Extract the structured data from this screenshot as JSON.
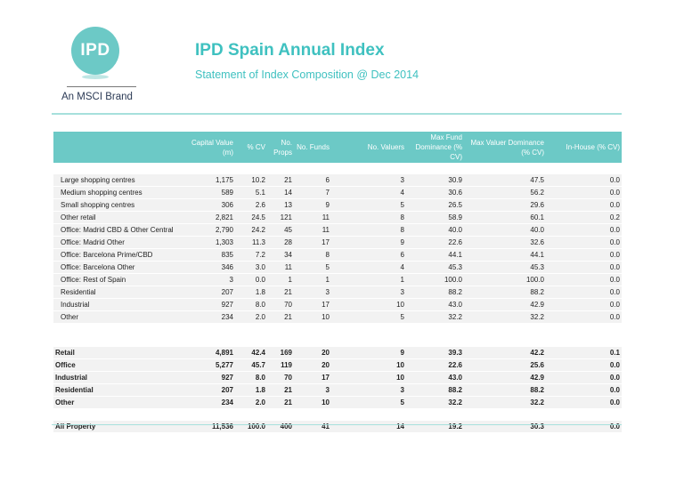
{
  "logo": {
    "text": "IPD",
    "brand": "An MSCI Brand",
    "color": "#6cc9c6"
  },
  "header": {
    "title": "IPD Spain Annual Index",
    "subtitle": "Statement of Index Composition  @ Dec 2014",
    "accent": "#3fc1c0"
  },
  "columns": [
    "",
    "Capital Value (m)",
    "% CV",
    "No. Props",
    "No. Funds",
    "No. Valuers",
    "Max Fund Dominance (% CV)",
    "Max Valuer Dominance (% CV)",
    "In-House (% CV)"
  ],
  "detail_rows": [
    [
      "Large shopping centres",
      "1,175",
      "10.2",
      "21",
      "6",
      "3",
      "30.9",
      "47.5",
      "0.0"
    ],
    [
      "Medium shopping centres",
      "589",
      "5.1",
      "14",
      "7",
      "4",
      "30.6",
      "56.2",
      "0.0"
    ],
    [
      "Small shopping centres",
      "306",
      "2.6",
      "13",
      "9",
      "5",
      "26.5",
      "29.6",
      "0.0"
    ],
    [
      "Other retail",
      "2,821",
      "24.5",
      "121",
      "11",
      "8",
      "58.9",
      "60.1",
      "0.2"
    ],
    [
      "Office: Madrid CBD & Other Central",
      "2,790",
      "24.2",
      "45",
      "11",
      "8",
      "40.0",
      "40.0",
      "0.0"
    ],
    [
      "Office: Madrid Other",
      "1,303",
      "11.3",
      "28",
      "17",
      "9",
      "22.6",
      "32.6",
      "0.0"
    ],
    [
      "Office: Barcelona Prime/CBD",
      "835",
      "7.2",
      "34",
      "8",
      "6",
      "44.1",
      "44.1",
      "0.0"
    ],
    [
      "Office: Barcelona Other",
      "346",
      "3.0",
      "11",
      "5",
      "4",
      "45.3",
      "45.3",
      "0.0"
    ],
    [
      "Office: Rest of Spain",
      "3",
      "0.0",
      "1",
      "1",
      "1",
      "100.0",
      "100.0",
      "0.0"
    ],
    [
      "Residential",
      "207",
      "1.8",
      "21",
      "3",
      "3",
      "88.2",
      "88.2",
      "0.0"
    ],
    [
      "Industrial",
      "927",
      "8.0",
      "70",
      "17",
      "10",
      "43.0",
      "42.9",
      "0.0"
    ],
    [
      "Other",
      "234",
      "2.0",
      "21",
      "10",
      "5",
      "32.2",
      "32.2",
      "0.0"
    ]
  ],
  "summary_rows": [
    [
      "Retail",
      "4,891",
      "42.4",
      "169",
      "20",
      "9",
      "39.3",
      "42.2",
      "0.1"
    ],
    [
      "Office",
      "5,277",
      "45.7",
      "119",
      "20",
      "10",
      "22.6",
      "25.6",
      "0.0"
    ],
    [
      "Industrial",
      "927",
      "8.0",
      "70",
      "17",
      "10",
      "43.0",
      "42.9",
      "0.0"
    ],
    [
      "Residential",
      "207",
      "1.8",
      "21",
      "3",
      "3",
      "88.2",
      "88.2",
      "0.0"
    ],
    [
      "Other",
      "234",
      "2.0",
      "21",
      "10",
      "5",
      "32.2",
      "32.2",
      "0.0"
    ]
  ],
  "total_row": [
    "All Property",
    "11,536",
    "100.0",
    "400",
    "41",
    "14",
    "19.2",
    "30.3",
    "0.0"
  ]
}
